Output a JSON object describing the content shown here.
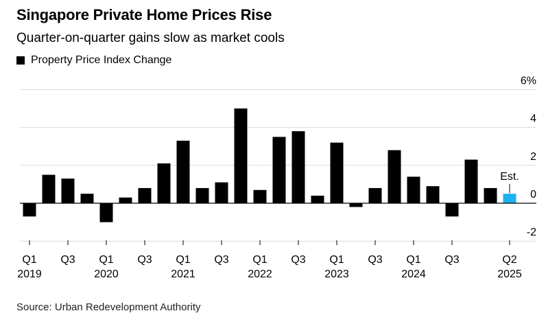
{
  "header": {
    "title": "Singapore Private Home Prices Rise",
    "subtitle": "Quarter-on-quarter gains slow as market cools"
  },
  "legend": {
    "label": "Property Price Index Change"
  },
  "source": "Source: Urban Redevelopment Authority",
  "colors": {
    "bar": "#000000",
    "estimate": "#1fb1f0",
    "grid": "#d9d9d9",
    "axis": "#000000"
  },
  "chart_data": {
    "type": "bar",
    "categories": [
      "Q1 2019",
      "Q2 2019",
      "Q3 2019",
      "Q4 2019",
      "Q1 2020",
      "Q2 2020",
      "Q3 2020",
      "Q4 2020",
      "Q1 2021",
      "Q2 2021",
      "Q3 2021",
      "Q4 2021",
      "Q1 2022",
      "Q2 2022",
      "Q3 2022",
      "Q4 2022",
      "Q1 2023",
      "Q2 2023",
      "Q3 2023",
      "Q4 2023",
      "Q1 2024",
      "Q2 2024",
      "Q3 2024",
      "Q4 2024",
      "Q1 2025",
      "Q2 2025"
    ],
    "series": [
      {
        "name": "Property Price Index Change",
        "values": [
          -0.7,
          1.5,
          1.3,
          0.5,
          -1.0,
          0.3,
          0.8,
          2.1,
          3.3,
          0.8,
          1.1,
          5.0,
          0.7,
          3.5,
          3.8,
          0.4,
          3.2,
          -0.2,
          0.8,
          2.8,
          1.4,
          0.9,
          -0.7,
          2.3,
          0.8,
          0.5
        ]
      }
    ],
    "estimate_index": 25,
    "estimate_label": "Est.",
    "ylim": [
      -2,
      6
    ],
    "yticks": [
      -2,
      0,
      2,
      4,
      6
    ],
    "ytick_labels": [
      "-2",
      "0",
      "2",
      "4",
      "6%"
    ],
    "xtick_labels": [
      {
        "index": 0,
        "quarter": "Q1",
        "year": "2019"
      },
      {
        "index": 2,
        "quarter": "Q3",
        "year": ""
      },
      {
        "index": 4,
        "quarter": "Q1",
        "year": "2020"
      },
      {
        "index": 6,
        "quarter": "Q3",
        "year": ""
      },
      {
        "index": 8,
        "quarter": "Q1",
        "year": "2021"
      },
      {
        "index": 10,
        "quarter": "Q3",
        "year": ""
      },
      {
        "index": 12,
        "quarter": "Q1",
        "year": "2022"
      },
      {
        "index": 14,
        "quarter": "Q3",
        "year": ""
      },
      {
        "index": 16,
        "quarter": "Q1",
        "year": "2023"
      },
      {
        "index": 18,
        "quarter": "Q3",
        "year": ""
      },
      {
        "index": 20,
        "quarter": "Q1",
        "year": "2024"
      },
      {
        "index": 22,
        "quarter": "Q3",
        "year": ""
      },
      {
        "index": 25,
        "quarter": "Q2",
        "year": "2025"
      }
    ],
    "grid": true,
    "legend_position": "top-left"
  }
}
